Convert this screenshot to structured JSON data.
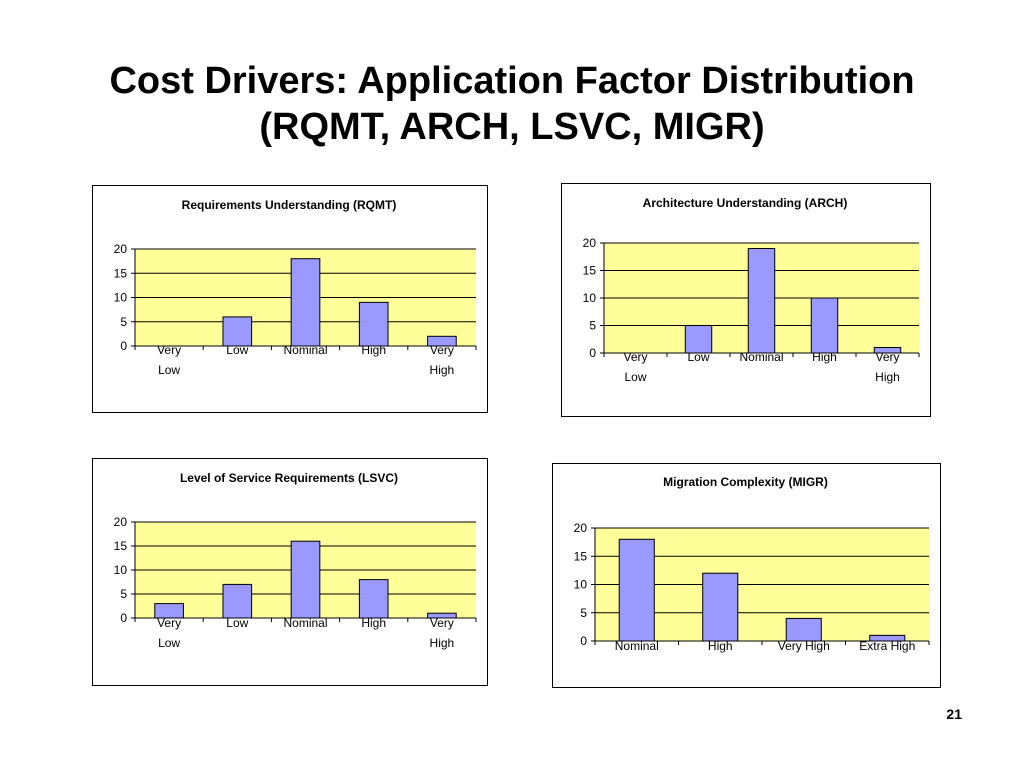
{
  "slide": {
    "title_line1": "Cost Drivers: Application Factor Distribution",
    "title_line2": "(RQMT, ARCH, LSVC, MIGR)",
    "page_number": "21"
  },
  "colors": {
    "plot_background": "#FFFF99",
    "bar_fill": "#9999FF",
    "bar_stroke": "#000000",
    "gridline": "#000000"
  },
  "chart_data": [
    {
      "type": "bar",
      "title": "Requirements Understanding (RQMT)",
      "categories": [
        [
          "Very",
          "Low"
        ],
        [
          "Low"
        ],
        [
          "Nominal"
        ],
        [
          "High"
        ],
        [
          "Very",
          "High"
        ]
      ],
      "values": [
        0,
        6,
        18,
        9,
        2
      ],
      "ylim": [
        0,
        20
      ],
      "yticks": [
        0,
        5,
        10,
        15,
        20
      ],
      "xlabel": "",
      "ylabel": "",
      "grid": true,
      "legend": "none"
    },
    {
      "type": "bar",
      "title": "Architecture Understanding (ARCH)",
      "categories": [
        [
          "Very",
          "Low"
        ],
        [
          "Low"
        ],
        [
          "Nominal"
        ],
        [
          "High"
        ],
        [
          "Very",
          "High"
        ]
      ],
      "values": [
        0,
        5,
        19,
        10,
        1
      ],
      "ylim": [
        0,
        20
      ],
      "yticks": [
        0,
        5,
        10,
        15,
        20
      ],
      "xlabel": "",
      "ylabel": "",
      "grid": true,
      "legend": "none"
    },
    {
      "type": "bar",
      "title": "Level of Service Requirements (LSVC)",
      "categories": [
        [
          "Very",
          "Low"
        ],
        [
          "Low"
        ],
        [
          "Nominal"
        ],
        [
          "High"
        ],
        [
          "Very",
          "High"
        ]
      ],
      "values": [
        3,
        7,
        16,
        8,
        1
      ],
      "ylim": [
        0,
        20
      ],
      "yticks": [
        0,
        5,
        10,
        15,
        20
      ],
      "xlabel": "",
      "ylabel": "",
      "grid": true,
      "legend": "none"
    },
    {
      "type": "bar",
      "title": "Migration Complexity (MIGR)",
      "categories": [
        [
          "Nominal"
        ],
        [
          "High"
        ],
        [
          "Very High"
        ],
        [
          "Extra High"
        ]
      ],
      "values": [
        18,
        12,
        4,
        1
      ],
      "ylim": [
        0,
        20
      ],
      "yticks": [
        0,
        5,
        10,
        15,
        20
      ],
      "xlabel": "",
      "ylabel": "",
      "grid": true,
      "legend": "none"
    }
  ]
}
